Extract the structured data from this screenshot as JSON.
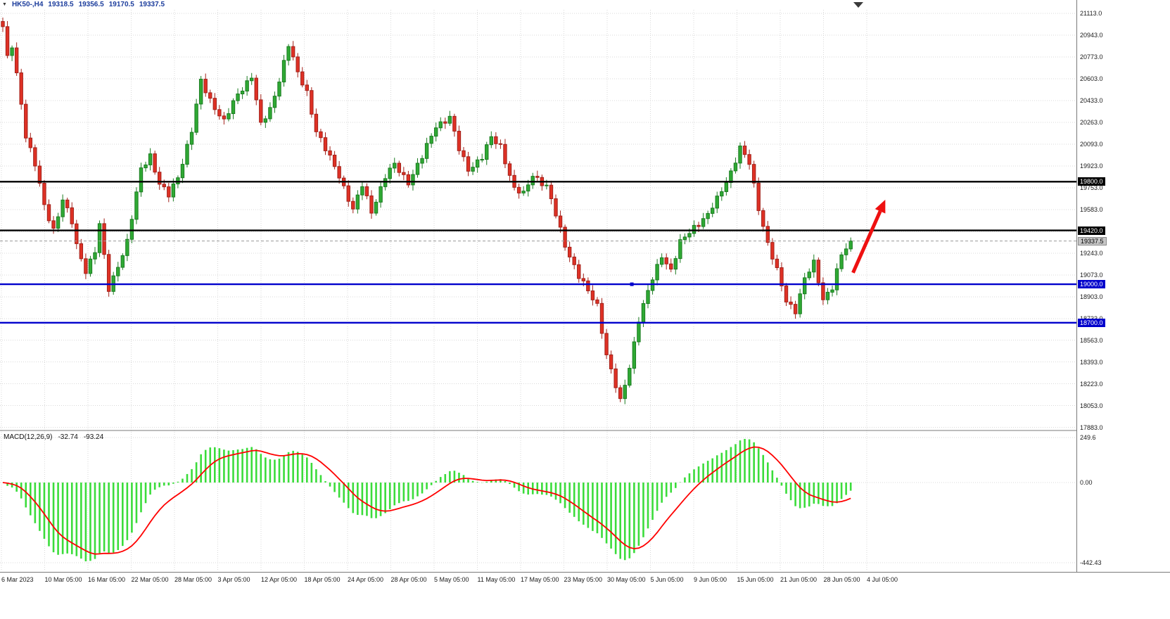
{
  "title_bar": {
    "symbol_period": "HK50-,H4",
    "open": "19318.5",
    "high": "19356.5",
    "low": "19170.5",
    "close": "19337.5"
  },
  "colors": {
    "bull_fill": "#2fa934",
    "bull_border": "#1a7c20",
    "bear_fill": "#df3125",
    "bear_border": "#a2211a",
    "grid": "#d9d9d9",
    "level_black": "#000000",
    "level_blue": "#0000cc",
    "current_line": "#9a9a9a",
    "macd_histogram": "#3bdc3b",
    "macd_signal": "#ff0000",
    "arrow": "#ee1010",
    "axis_text": "#1a1a1a",
    "title_text": "#1b3c9c",
    "badge_current_bg": "#c6c6c6"
  },
  "chart_data": {
    "type": "candlestick",
    "symbol": "HK50-",
    "timeframe": "H4",
    "ohlc_current": {
      "open": 19318.5,
      "high": 19356.5,
      "low": 19170.5,
      "close": 19337.5
    },
    "y_ticks": [
      21113.0,
      20943.0,
      20773.0,
      20603.0,
      20433.0,
      20263.0,
      20093.0,
      19923.0,
      19753.0,
      19583.0,
      19413.0,
      19243.0,
      19073.0,
      18903.0,
      18733.0,
      18563.0,
      18393.0,
      18223.0,
      18053.0,
      17883.0
    ],
    "x_labels": [
      "6 Mar 2023",
      "10 Mar 05:00",
      "16 Mar 05:00",
      "22 Mar 05:00",
      "28 Mar 05:00",
      "3 Apr 05:00",
      "12 Apr 05:00",
      "18 Apr 05:00",
      "24 Apr 05:00",
      "28 Apr 05:00",
      "5 May 05:00",
      "11 May 05:00",
      "17 May 05:00",
      "23 May 05:00",
      "30 May 05:00",
      "5 Jun 05:00",
      "9 Jun 05:00",
      "15 Jun 05:00",
      "21 Jun 05:00",
      "28 Jun 05:00",
      "4 Jul 05:00"
    ],
    "levels": [
      {
        "price": 19800.0,
        "label": "19800.0",
        "style": "black"
      },
      {
        "price": 19420.0,
        "label": "19420.0",
        "style": "black"
      },
      {
        "price": 19000.0,
        "label": "19000.0",
        "style": "blue"
      },
      {
        "price": 18700.0,
        "label": "18700.0",
        "style": "blue"
      }
    ],
    "current_price": {
      "value": 19337.5,
      "label": "19337.5"
    },
    "candles": {
      "count": 185,
      "close_waypoints": [
        [
          0,
          21000
        ],
        [
          1,
          20760
        ],
        [
          2,
          20860
        ],
        [
          4,
          20420
        ],
        [
          5,
          20160
        ],
        [
          7,
          19930
        ],
        [
          9,
          19610
        ],
        [
          11,
          19430
        ],
        [
          13,
          19660
        ],
        [
          15,
          19480
        ],
        [
          16,
          19300
        ],
        [
          18,
          19110
        ],
        [
          20,
          19260
        ],
        [
          21,
          19460
        ],
        [
          23,
          18960
        ],
        [
          25,
          19150
        ],
        [
          27,
          19330
        ],
        [
          29,
          19700
        ],
        [
          30,
          19900
        ],
        [
          32,
          20010
        ],
        [
          34,
          19780
        ],
        [
          36,
          19690
        ],
        [
          38,
          19840
        ],
        [
          39,
          19960
        ],
        [
          41,
          20200
        ],
        [
          43,
          20580
        ],
        [
          45,
          20440
        ],
        [
          48,
          20270
        ],
        [
          51,
          20480
        ],
        [
          54,
          20630
        ],
        [
          56,
          20240
        ],
        [
          58,
          20360
        ],
        [
          60,
          20600
        ],
        [
          62,
          20870
        ],
        [
          64,
          20640
        ],
        [
          66,
          20500
        ],
        [
          68,
          20200
        ],
        [
          70,
          20050
        ],
        [
          73,
          19850
        ],
        [
          76,
          19580
        ],
        [
          78,
          19770
        ],
        [
          80,
          19570
        ],
        [
          83,
          19840
        ],
        [
          85,
          19930
        ],
        [
          88,
          19800
        ],
        [
          91,
          19990
        ],
        [
          94,
          20240
        ],
        [
          97,
          20300
        ],
        [
          99,
          20050
        ],
        [
          101,
          19900
        ],
        [
          104,
          19990
        ],
        [
          106,
          20140
        ],
        [
          108,
          20080
        ],
        [
          111,
          19740
        ],
        [
          113,
          19700
        ],
        [
          115,
          19860
        ],
        [
          118,
          19760
        ],
        [
          120,
          19540
        ],
        [
          122,
          19310
        ],
        [
          125,
          19060
        ],
        [
          127,
          18940
        ],
        [
          129,
          18840
        ],
        [
          131,
          18450
        ],
        [
          133,
          18200
        ],
        [
          134,
          18080
        ],
        [
          136,
          18360
        ],
        [
          138,
          18730
        ],
        [
          141,
          19040
        ],
        [
          143,
          19230
        ],
        [
          145,
          19110
        ],
        [
          147,
          19320
        ],
        [
          150,
          19450
        ],
        [
          153,
          19540
        ],
        [
          155,
          19660
        ],
        [
          158,
          19880
        ],
        [
          160,
          20060
        ],
        [
          162,
          19940
        ],
        [
          164,
          19600
        ],
        [
          166,
          19320
        ],
        [
          168,
          19100
        ],
        [
          170,
          18870
        ],
        [
          172,
          18800
        ],
        [
          174,
          19040
        ],
        [
          176,
          19160
        ],
        [
          178,
          18890
        ],
        [
          180,
          18980
        ],
        [
          182,
          19220
        ],
        [
          184,
          19337.5
        ]
      ]
    },
    "macd": {
      "label_text": "MACD(12,26,9)",
      "value_macd": "-32.74",
      "value_signal": "-93.24",
      "y_tick_labels": [
        "249.6",
        "0.00",
        "-442.43"
      ],
      "y_tick_values": [
        249.6,
        0.0,
        -442.43
      ]
    },
    "annotations": {
      "arrow_up": {
        "from_index": 184.5,
        "from_price": 19090,
        "to_index": 191.5,
        "to_price": 19660
      },
      "hline_anchor": {
        "index": 136.5,
        "price": 19000
      },
      "shift_marker": true
    }
  }
}
